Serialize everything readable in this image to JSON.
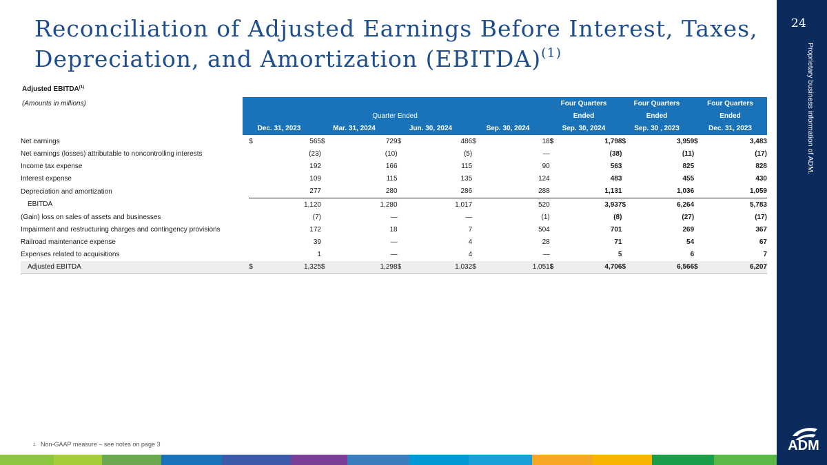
{
  "slide": {
    "title_line1": "Reconciliation of Adjusted Earnings Before Interest, Taxes,",
    "title_line2": "Depreciation, and Amortization (EBITDA)",
    "title_sup": "(1)",
    "page_number": "24",
    "proprietary_note": "Proprietary business information of ADM.",
    "logo_text": "ADM",
    "footnote_number": "1.",
    "footnote_text": "Non-GAAP measure – see notes on page 3"
  },
  "colors": {
    "title": "#1f4e8c",
    "header_fill": "#1a73b8",
    "sidebar": "#0a2b5c",
    "stripes": [
      "#8cc63f",
      "#a5cd39",
      "#6aa84f",
      "#1a73b8",
      "#3b5aa8",
      "#7b3f98",
      "#3a7ebd",
      "#0099d6",
      "#1aa0d8",
      "#f5a623",
      "#f7b500",
      "#1a9e4a",
      "#5ab946"
    ]
  },
  "table": {
    "heading": "Adjusted EBITDA",
    "heading_sup": "(1)",
    "subheading": "(Amounts in millions)",
    "group_quarter": "Quarter Ended",
    "group_fq": [
      "Four Quarters",
      "Four Quarters",
      "Four Quarters"
    ],
    "group_fq_line2": [
      "Ended",
      "Ended",
      "Ended"
    ],
    "columns": [
      "Dec. 31, 2023",
      "Mar. 31, 2024",
      "Jun. 30, 2024",
      "Sep. 30, 2024",
      "Sep. 30, 2024",
      "Sep. 30 , 2023",
      "Dec. 31, 2023"
    ],
    "rows": [
      {
        "label": "Net earnings",
        "dollars": [
          "$",
          "$",
          "$",
          "$",
          "$",
          "$",
          "$"
        ],
        "values": [
          "565",
          "729",
          "486",
          "18",
          "1,798",
          "3,959",
          "3,483"
        ]
      },
      {
        "label": "Net earnings (losses) attributable to noncontrolling interests",
        "dollars": [
          "",
          "",
          "",
          "",
          "",
          "",
          ""
        ],
        "values": [
          "(23)",
          "(10)",
          "(5)",
          "—",
          "(38)",
          "(11)",
          "(17)"
        ]
      },
      {
        "label": "Income tax expense",
        "dollars": [
          "",
          "",
          "",
          "",
          "",
          "",
          ""
        ],
        "values": [
          "192",
          "166",
          "115",
          "90",
          "563",
          "825",
          "828"
        ]
      },
      {
        "label": "Interest expense",
        "dollars": [
          "",
          "",
          "",
          "",
          "",
          "",
          ""
        ],
        "values": [
          "109",
          "115",
          "135",
          "124",
          "483",
          "455",
          "430"
        ]
      },
      {
        "label": "Depreciation and amortization",
        "dollars": [
          "",
          "",
          "",
          "",
          "",
          "",
          ""
        ],
        "values": [
          "277",
          "280",
          "286",
          "288",
          "1,131",
          "1,036",
          "1,059"
        ]
      },
      {
        "label": "EBITDA",
        "dollars": [
          "",
          "",
          "",
          "",
          "",
          "$",
          ""
        ],
        "values": [
          "1,120",
          "1,280",
          "1,017",
          "520",
          "3,937",
          "6,264",
          "5,783"
        ]
      },
      {
        "label": "(Gain) loss on sales of assets and businesses",
        "dollars": [
          "",
          "",
          "",
          "",
          "",
          "",
          ""
        ],
        "values": [
          "(7)",
          "—",
          "—",
          "(1)",
          "(8)",
          "(27)",
          "(17)"
        ]
      },
      {
        "label": "Impairment and restructuring charges and contingency provisions",
        "dollars": [
          "",
          "",
          "",
          "",
          "",
          "",
          ""
        ],
        "values": [
          "172",
          "18",
          "7",
          "504",
          "701",
          "269",
          "367"
        ]
      },
      {
        "label": "Railroad maintenance expense",
        "dollars": [
          "",
          "",
          "",
          "",
          "",
          "",
          ""
        ],
        "values": [
          "39",
          "—",
          "4",
          "28",
          "71",
          "54",
          "67"
        ]
      },
      {
        "label": "Expenses related to acquisitions",
        "dollars": [
          "",
          "",
          "",
          "",
          "",
          "",
          ""
        ],
        "values": [
          "1",
          "—",
          "4",
          "—",
          "5",
          "6",
          "7"
        ]
      },
      {
        "label": "Adjusted EBITDA",
        "dollars": [
          "$",
          "$",
          "$",
          "$",
          "$",
          "$",
          "$"
        ],
        "values": [
          "1,325",
          "1,298",
          "1,032",
          "1,051",
          "4,706",
          "6,566",
          "6,207"
        ]
      }
    ]
  }
}
